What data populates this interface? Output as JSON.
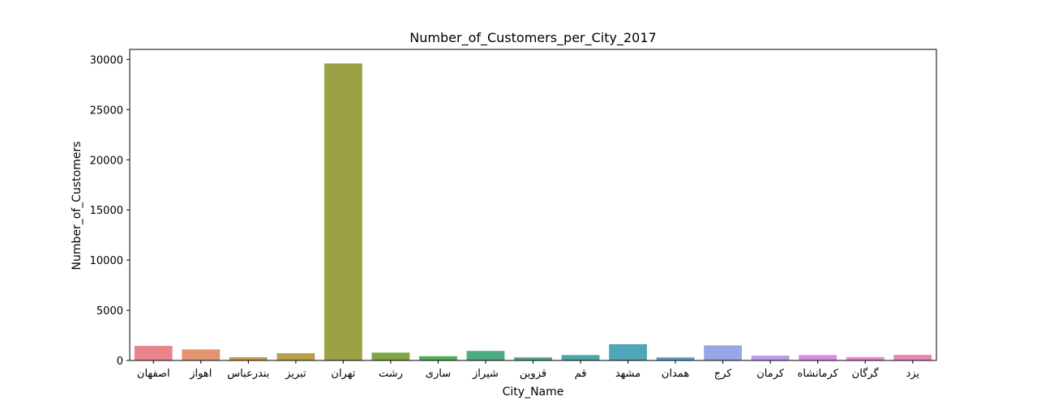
{
  "chart_data": {
    "type": "bar",
    "title": "Number_of_Customers_per_City_2017",
    "xlabel": "City_Name",
    "ylabel": "Number_of_Customers",
    "categories": [
      "اصفهان",
      "اهواز",
      "بندرعباس",
      "تبریز",
      "تهران",
      "رشت",
      "ساری",
      "شیراز",
      "قزوین",
      "قم",
      "مشهد",
      "همدان",
      "کرج",
      "کرمان",
      "کرمانشاه",
      "گرگان",
      "یزد"
    ],
    "values": [
      1450,
      1100,
      320,
      720,
      29600,
      780,
      420,
      950,
      310,
      540,
      1620,
      310,
      1500,
      480,
      540,
      330,
      560
    ],
    "colors": [
      "#e8868c",
      "#e29470",
      "#c79a45",
      "#b89e48",
      "#9ba144",
      "#7ea744",
      "#4fac5a",
      "#4daa82",
      "#4fa895",
      "#4ea6a4",
      "#50a5b6",
      "#56a2cf",
      "#97a6e4",
      "#bc9ce6",
      "#da8ae6",
      "#e585d5",
      "#e886b5"
    ],
    "ylim": [
      0,
      31000
    ],
    "yticks": [
      0,
      5000,
      10000,
      15000,
      20000,
      25000,
      30000
    ],
    "grid": false,
    "legend": "none"
  }
}
